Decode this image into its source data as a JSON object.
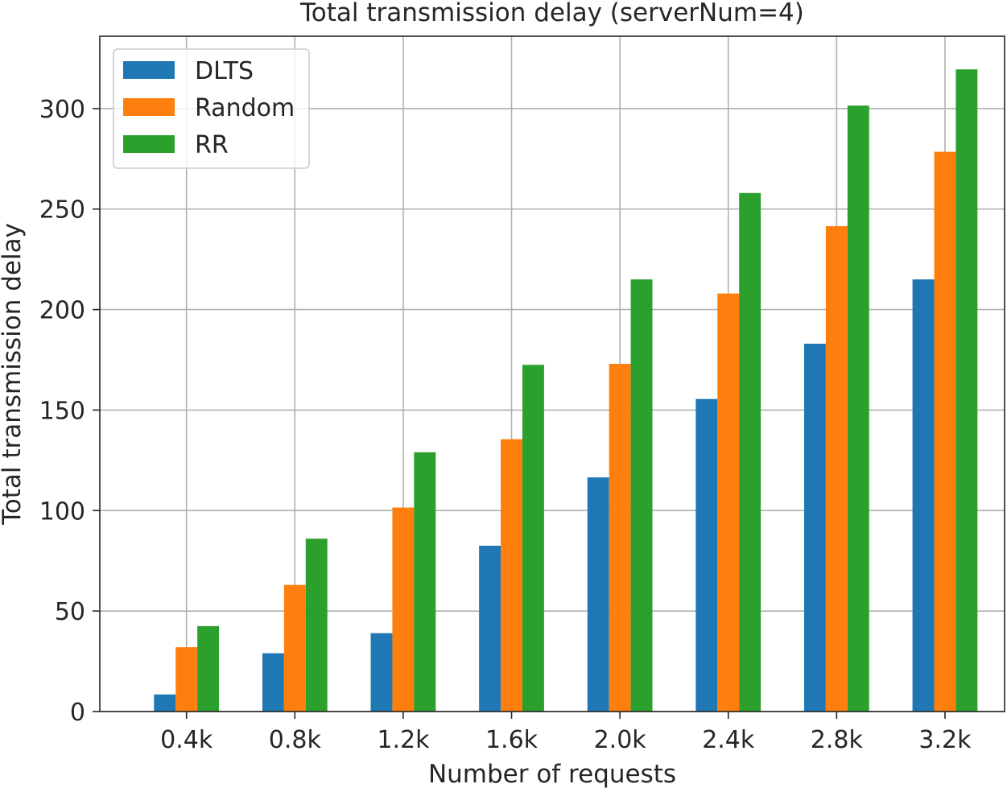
{
  "chart_data": {
    "type": "bar",
    "title": "Total transmission delay (serverNum=4)",
    "xlabel": "Number of requests",
    "ylabel": "Total transmission delay",
    "categories": [
      "0.4k",
      "0.8k",
      "1.2k",
      "1.6k",
      "2.0k",
      "2.4k",
      "2.8k",
      "3.2k"
    ],
    "series": [
      {
        "name": "DLTS",
        "color": "#1f77b4",
        "values": [
          8.5,
          29,
          39,
          82.5,
          116.5,
          155.5,
          183,
          215
        ]
      },
      {
        "name": "Random",
        "color": "#ff7f0e",
        "values": [
          32,
          63,
          101.5,
          135.5,
          173,
          208,
          241.5,
          278.5
        ]
      },
      {
        "name": "RR",
        "color": "#2ca02c",
        "values": [
          42.5,
          86,
          129,
          172.5,
          215,
          258,
          301.5,
          319.5
        ]
      }
    ],
    "ylim": [
      0,
      336
    ],
    "yticks": [
      0,
      50,
      100,
      150,
      200,
      250,
      300
    ],
    "grid": true,
    "legend_position": "top-left"
  }
}
